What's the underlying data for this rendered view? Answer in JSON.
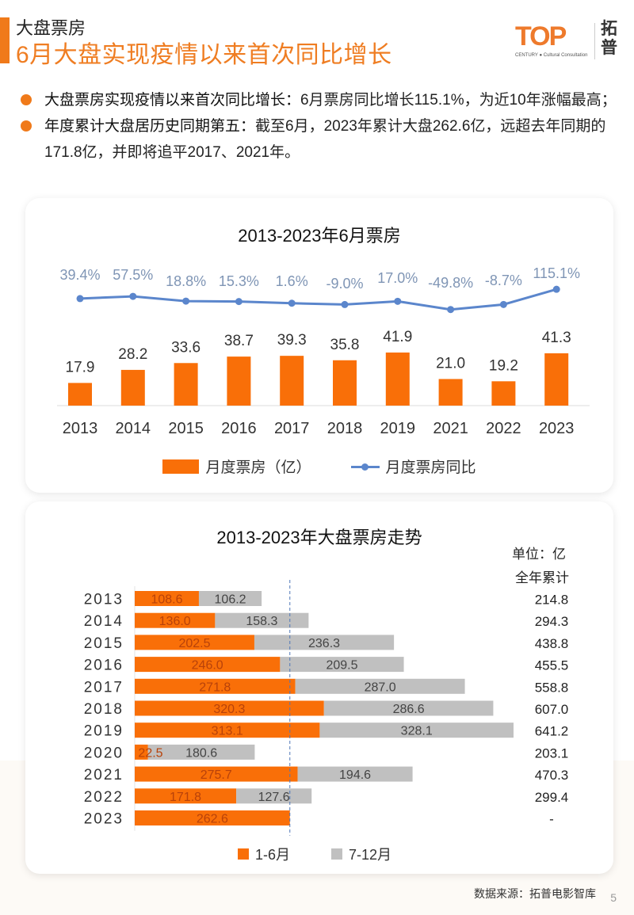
{
  "header": {
    "section_label": "大盘票房",
    "title": "6月大盘实现疫情以来首次同比增长",
    "logo": {
      "mark": "TOP",
      "subtitle": "CENTURY ● Cultural Consultation",
      "cn_name": "拓普"
    }
  },
  "bullets": [
    {
      "bold": "大盘票房实现疫情以来首次同比增长：",
      "text": "6月票房同比增长115.1%，为近10年涨幅最高；"
    },
    {
      "bold": "年度累计大盘居历史同期第五：",
      "text": "截至6月，2023年累计大盘262.6亿，远超去年同期的171.8亿，并即将追平2017、2021年。"
    }
  ],
  "colors": {
    "accent": "#f07a1a",
    "bar_orange": "#f96f08",
    "bar_gray": "#c0c0c0",
    "line_blue": "#5b86cc",
    "pct_label": "#7f95b5"
  },
  "chart_data": [
    {
      "type": "bar",
      "title": "2013-2023年6月票房",
      "categories": [
        "2013",
        "2014",
        "2015",
        "2016",
        "2017",
        "2018",
        "2019",
        "2021",
        "2022",
        "2023"
      ],
      "series": [
        {
          "name": "月度票房（亿）",
          "kind": "bar",
          "values": [
            17.9,
            28.2,
            33.6,
            38.7,
            39.3,
            35.8,
            41.9,
            21.0,
            19.2,
            41.3
          ]
        },
        {
          "name": "月度票房同比",
          "kind": "line",
          "values": [
            39.4,
            57.5,
            18.8,
            15.3,
            1.6,
            -9.0,
            17.0,
            -49.8,
            -8.7,
            115.1
          ],
          "labels": [
            "39.4%",
            "57.5%",
            "18.8%",
            "15.3%",
            "1.6%",
            "-9.0%",
            "17.0%",
            "-49.8%",
            "-8.7%",
            "115.1%"
          ]
        }
      ],
      "bar_labels": [
        "17.9",
        "28.2",
        "33.6",
        "38.7",
        "39.3",
        "35.8",
        "41.9",
        "21.0",
        "19.2",
        "41.3"
      ],
      "legend": [
        "月度票房（亿）",
        "月度票房同比"
      ],
      "legend_position": "bottom",
      "grid": false,
      "xlabel": "",
      "ylabel": "",
      "ylim": [
        0,
        45
      ]
    },
    {
      "type": "bar",
      "orientation": "horizontal-stacked",
      "title": "2013-2023年大盘票房走势",
      "unit_label": "单位：亿",
      "total_header": "全年累计",
      "categories": [
        "2013",
        "2014",
        "2015",
        "2016",
        "2017",
        "2018",
        "2019",
        "2020",
        "2021",
        "2022",
        "2023"
      ],
      "series": [
        {
          "name": "1-6月",
          "values": [
            108.6,
            136.0,
            202.5,
            246.0,
            271.8,
            320.3,
            313.1,
            22.5,
            275.7,
            171.8,
            262.6
          ],
          "labels": [
            "108.6",
            "136.0",
            "202.5",
            "246.0",
            "271.8",
            "320.3",
            "313.1",
            "22.5",
            "275.7",
            "171.8",
            "262.6"
          ]
        },
        {
          "name": "7-12月",
          "values": [
            106.2,
            158.3,
            236.3,
            209.5,
            287.0,
            286.6,
            328.1,
            180.6,
            194.6,
            127.6,
            null
          ],
          "labels": [
            "106.2",
            "158.3",
            "236.3",
            "209.5",
            "287.0",
            "286.6",
            "328.1",
            "180.6",
            "194.6",
            "127.6",
            ""
          ]
        }
      ],
      "totals": [
        "214.8",
        "294.3",
        "438.8",
        "455.5",
        "558.8",
        "607.0",
        "641.2",
        "203.1",
        "470.3",
        "299.4",
        "-"
      ],
      "reference_line": 262.6,
      "legend": [
        "1-6月",
        "7-12月"
      ],
      "legend_position": "bottom",
      "grid": false,
      "xlim": [
        0,
        660
      ]
    }
  ],
  "footer": {
    "source": "数据来源：拓普电影智库",
    "page_number": "5"
  }
}
